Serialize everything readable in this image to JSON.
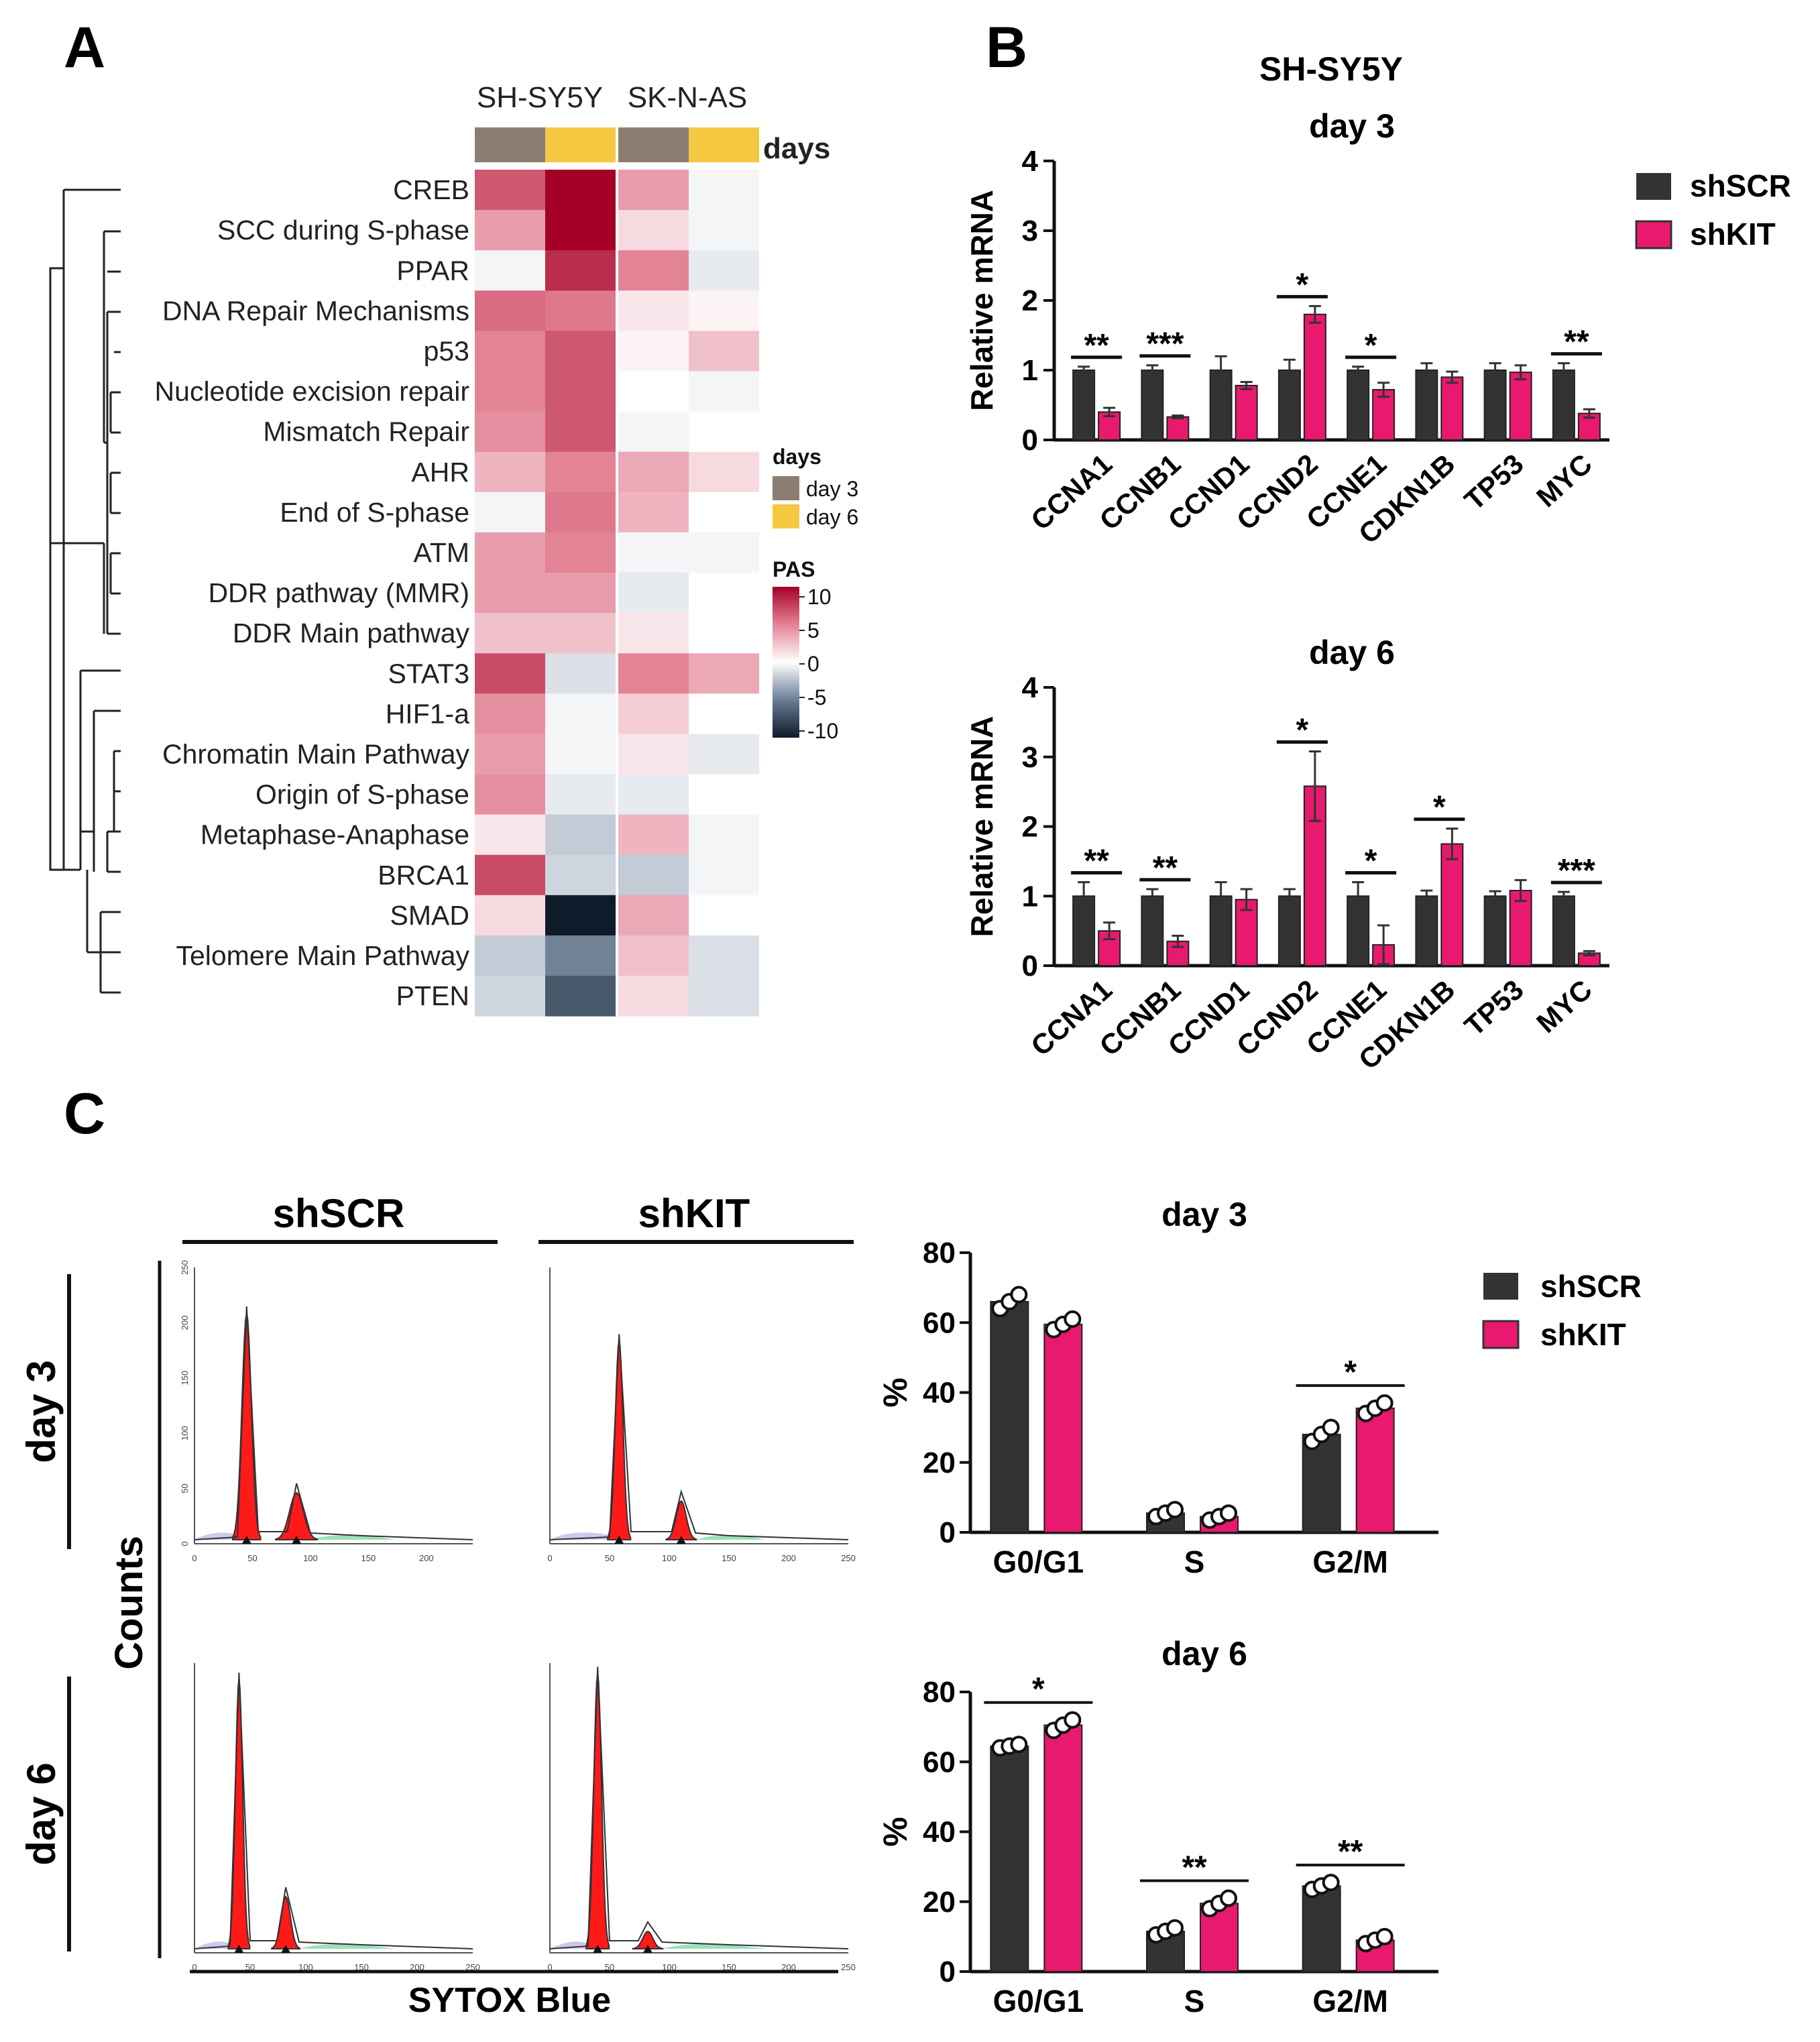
{
  "colors": {
    "shSCR": "#333333",
    "shKIT": "#e8196e",
    "day3": "#8c7d73",
    "day6": "#f5c842",
    "heat_pos": "#a50026",
    "heat_neg": "#0d1b2a"
  },
  "panelA": {
    "label": "A",
    "cell_lines": [
      "SH-SY5Y",
      "SK-N-AS"
    ],
    "days_header": "days",
    "column_days": [
      "day 3",
      "day 6",
      "day 3",
      "day 6"
    ],
    "rows": [
      {
        "name": "CREB",
        "values": [
          7,
          11,
          4,
          -0.5
        ]
      },
      {
        "name": "SCC during S-phase",
        "values": [
          4,
          11,
          1.5,
          -0.5
        ]
      },
      {
        "name": "PPAR",
        "values": [
          -0.5,
          9,
          5,
          -1
        ]
      },
      {
        "name": "DNA Repair Mechanisms",
        "values": [
          6,
          5.5,
          1,
          0.5
        ]
      },
      {
        "name": "p53",
        "values": [
          5,
          7,
          0.5,
          2.5
        ]
      },
      {
        "name": "Nucleotide excision repair",
        "values": [
          5,
          7,
          0,
          -0.5
        ]
      },
      {
        "name": "Mismatch Repair",
        "values": [
          4.5,
          7,
          -0.5,
          0
        ]
      },
      {
        "name": "AHR",
        "values": [
          3,
          5,
          3.5,
          1.5
        ]
      },
      {
        "name": "End of S-phase",
        "values": [
          -0.5,
          5.5,
          3,
          0
        ]
      },
      {
        "name": "ATM",
        "values": [
          4,
          5,
          -0.5,
          -0.5
        ]
      },
      {
        "name": "DDR pathway (MMR)",
        "values": [
          4,
          4,
          -1,
          0
        ]
      },
      {
        "name": "DDR Main pathway",
        "values": [
          2.5,
          2.5,
          1,
          0
        ]
      },
      {
        "name": "STAT3",
        "values": [
          7.5,
          -1.5,
          5,
          3.5
        ]
      },
      {
        "name": "HIF1-a",
        "values": [
          4.5,
          -0.5,
          2,
          0
        ]
      },
      {
        "name": "Chromatin Main Pathway",
        "values": [
          4,
          -0.5,
          1,
          -1
        ]
      },
      {
        "name": "Origin of S-phase",
        "values": [
          4.5,
          -1,
          -1,
          0
        ]
      },
      {
        "name": "Metaphase-Anaphase",
        "values": [
          1,
          -2.5,
          3,
          -0.5
        ]
      },
      {
        "name": "BRCA1",
        "values": [
          7.5,
          -2,
          -2.5,
          -0.5
        ]
      },
      {
        "name": "SMAD",
        "values": [
          1.5,
          -11,
          3.5,
          0
        ]
      },
      {
        "name": "Telomere Main Pathway",
        "values": [
          -2.5,
          -6,
          2.5,
          -1.5
        ]
      },
      {
        "name": "PTEN",
        "values": [
          -2,
          -8,
          1.5,
          -1.5
        ]
      }
    ],
    "legend_days_title": "days",
    "legend_days": [
      "day 3",
      "day 6"
    ],
    "legend_pas_title": "PAS",
    "legend_pas_ticks": [
      "10",
      "5",
      "0",
      "-5",
      "-10"
    ]
  },
  "panelB": {
    "label": "B",
    "title_line1": "SH-SY5Y",
    "legend": [
      "shSCR",
      "shKIT"
    ],
    "chart_data": [
      {
        "type": "bar",
        "title": "day 3",
        "ylabel": "Relative mRNA",
        "ylim": [
          0,
          4
        ],
        "yticks": [
          "0",
          "1",
          "2",
          "3",
          "4"
        ],
        "categories": [
          "CCNA1",
          "CCNB1",
          "CCND1",
          "CCND2",
          "CCNE1",
          "CDKN1B",
          "TP53",
          "MYC"
        ],
        "series": [
          {
            "name": "shSCR",
            "values": [
              1.0,
              1.0,
              1.0,
              1.0,
              1.0,
              1.0,
              1.0,
              1.0
            ],
            "errors": [
              0.05,
              0.07,
              0.2,
              0.15,
              0.05,
              0.1,
              0.1,
              0.1
            ]
          },
          {
            "name": "shKIT",
            "values": [
              0.4,
              0.33,
              0.78,
              1.8,
              0.72,
              0.9,
              0.97,
              0.38
            ],
            "errors": [
              0.06,
              0.02,
              0.05,
              0.12,
              0.1,
              0.08,
              0.1,
              0.06
            ]
          }
        ],
        "significance": [
          "**",
          "***",
          "",
          "*",
          "*",
          "",
          "",
          "**"
        ]
      },
      {
        "type": "bar",
        "title": "day 6",
        "ylabel": "Relative mRNA",
        "ylim": [
          0,
          4
        ],
        "yticks": [
          "0",
          "1",
          "2",
          "3",
          "4"
        ],
        "categories": [
          "CCNA1",
          "CCNB1",
          "CCND1",
          "CCND2",
          "CCNE1",
          "CDKN1B",
          "TP53",
          "MYC"
        ],
        "series": [
          {
            "name": "shSCR",
            "values": [
              1.0,
              1.0,
              1.0,
              1.0,
              1.0,
              1.0,
              1.0,
              1.0
            ],
            "errors": [
              0.2,
              0.1,
              0.2,
              0.1,
              0.2,
              0.08,
              0.07,
              0.06
            ]
          },
          {
            "name": "shKIT",
            "values": [
              0.5,
              0.35,
              0.95,
              2.58,
              0.3,
              1.75,
              1.08,
              0.18
            ],
            "errors": [
              0.12,
              0.08,
              0.15,
              0.5,
              0.28,
              0.22,
              0.15,
              0.03
            ]
          }
        ],
        "significance": [
          "**",
          "**",
          "",
          "*",
          "*",
          "*",
          "",
          "***"
        ]
      }
    ]
  },
  "panelC": {
    "label": "C",
    "columns": [
      "shSCR",
      "shKIT"
    ],
    "rows": [
      "day 3",
      "day 6"
    ],
    "ylabel": "Counts",
    "xlabel": "SYTOX Blue",
    "hist_axes": {
      "day3_shSCR_x": [
        "0",
        "50",
        "100",
        "150",
        "200"
      ],
      "day3_shSCR_y": [
        "250",
        "200",
        "150",
        "100",
        "50",
        "0"
      ],
      "other_x": [
        "0",
        "50",
        "100",
        "150",
        "200",
        "250"
      ]
    },
    "histograms": [
      {
        "g1": 45,
        "g1_height": 0.82,
        "g2": 88,
        "g2_height": 0.17
      },
      {
        "g1": 58,
        "g1_height": 0.72,
        "g2": 110,
        "g2_height": 0.14
      },
      {
        "g1": 40,
        "g1_height": 0.93,
        "g2": 82,
        "g2_height": 0.18
      },
      {
        "g1": 40,
        "g1_height": 0.95,
        "g2": 82,
        "g2_height": 0.06
      }
    ],
    "legend": [
      "shSCR",
      "shKIT"
    ],
    "chart_data": [
      {
        "type": "bar",
        "title": "day 3",
        "ylabel": "%",
        "ylim": [
          0,
          80
        ],
        "yticks": [
          "0",
          "20",
          "40",
          "60",
          "80"
        ],
        "categories": [
          "G0/G1",
          "S",
          "G2/M"
        ],
        "series": [
          {
            "name": "shSCR",
            "values": [
              66,
              5.5,
              28
            ],
            "points": [
              [
                64,
                66,
                68
              ],
              [
                4.5,
                5.5,
                6.5
              ],
              [
                26,
                28,
                30
              ]
            ]
          },
          {
            "name": "shKIT",
            "values": [
              59.5,
              4.5,
              35.5
            ],
            "points": [
              [
                58,
                59.5,
                61
              ],
              [
                3.5,
                4.5,
                5.5
              ],
              [
                34,
                35.5,
                37
              ]
            ]
          }
        ],
        "significance": [
          "",
          "",
          "*"
        ]
      },
      {
        "type": "bar",
        "title": "day 6",
        "ylabel": "%",
        "ylim": [
          0,
          80
        ],
        "yticks": [
          "0",
          "20",
          "40",
          "60",
          "80"
        ],
        "categories": [
          "G0/G1",
          "S",
          "G2/M"
        ],
        "series": [
          {
            "name": "shSCR",
            "values": [
              64.5,
              11.5,
              24.5
            ],
            "points": [
              [
                64,
                64.5,
                65
              ],
              [
                10.5,
                11.5,
                12.5
              ],
              [
                23.5,
                24.5,
                25.5
              ]
            ]
          },
          {
            "name": "shKIT",
            "values": [
              70.5,
              19.5,
              9
            ],
            "points": [
              [
                69,
                70.5,
                72
              ],
              [
                18,
                19.5,
                21
              ],
              [
                8,
                9,
                10
              ]
            ]
          }
        ],
        "significance": [
          "*",
          "**",
          "**"
        ]
      }
    ]
  }
}
